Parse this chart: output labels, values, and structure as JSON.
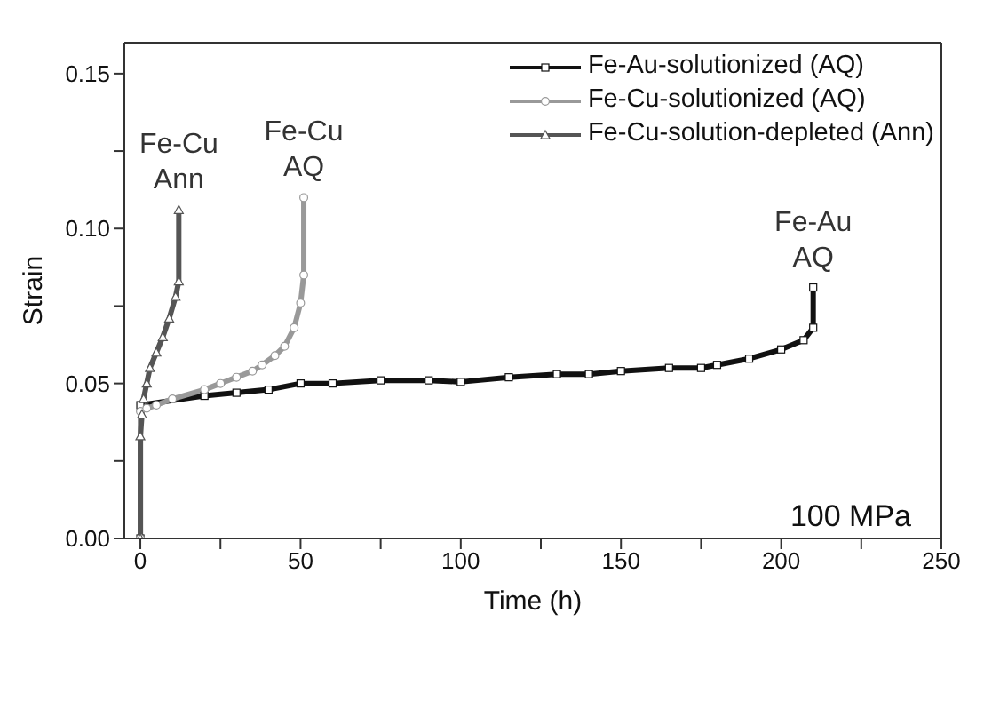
{
  "chart_data": {
    "type": "line",
    "xlabel": "Time (h)",
    "ylabel": "Strain",
    "xlim": [
      -5,
      250
    ],
    "xticks": [
      0,
      {
        "value": 25,
        "label": null
      },
      50,
      {
        "value": 75,
        "label": null
      },
      100,
      {
        "value": 125,
        "label": null
      },
      150,
      {
        "value": 175,
        "label": null
      },
      200,
      {
        "value": 225,
        "label": null
      },
      250
    ],
    "ylim": [
      0,
      0.16
    ],
    "yticks": [
      {
        "value": 0,
        "label": "0.00"
      },
      {
        "value": 0.025,
        "label": null
      },
      {
        "value": 0.05,
        "label": "0.05"
      },
      {
        "value": 0.075,
        "label": null
      },
      {
        "value": 0.1,
        "label": "0.10"
      },
      {
        "value": 0.125,
        "label": null
      },
      {
        "value": 0.15,
        "label": "0.15"
      }
    ],
    "legend": "top right",
    "line_style": "solid",
    "series": [
      {
        "name": "Fe-Au-solutionized (AQ)",
        "color": "#111111",
        "marker": "square",
        "x": [
          0,
          0,
          20,
          30,
          40,
          50,
          60,
          75,
          90,
          100,
          115,
          130,
          140,
          150,
          165,
          175,
          180,
          190,
          200,
          207,
          210,
          210
        ],
        "values": [
          0,
          0.043,
          0.046,
          0.047,
          0.048,
          0.05,
          0.05,
          0.051,
          0.051,
          0.0505,
          0.052,
          0.053,
          0.053,
          0.054,
          0.055,
          0.055,
          0.056,
          0.058,
          0.061,
          0.064,
          0.068,
          0.081
        ]
      },
      {
        "name": "Fe-Cu-solutionized (AQ)",
        "color": "#999999",
        "marker": "circle",
        "x": [
          0,
          0,
          2,
          5,
          10,
          20,
          25,
          30,
          35,
          38,
          42,
          45,
          48,
          50,
          51,
          51
        ],
        "values": [
          0,
          0.041,
          0.042,
          0.043,
          0.045,
          0.048,
          0.05,
          0.052,
          0.054,
          0.056,
          0.059,
          0.062,
          0.068,
          0.076,
          0.085,
          0.11
        ]
      },
      {
        "name": "Fe-Cu-solution-depleted (Ann)",
        "color": "#555555",
        "marker": "triangle",
        "x": [
          0,
          0,
          0.5,
          1,
          2,
          3,
          5,
          7,
          9,
          11,
          12,
          12
        ],
        "values": [
          0,
          0.033,
          0.04,
          0.045,
          0.05,
          0.055,
          0.06,
          0.065,
          0.071,
          0.078,
          0.083,
          0.106
        ]
      }
    ],
    "annotations": [
      {
        "text": "Fe-Cu Ann",
        "x": 12,
        "y": 0.106
      },
      {
        "text": "Fe-Cu AQ",
        "x": 51,
        "y": 0.11
      },
      {
        "text": "Fe-Au AQ",
        "x": 210,
        "y": 0.081
      },
      "100 MPa"
    ]
  }
}
